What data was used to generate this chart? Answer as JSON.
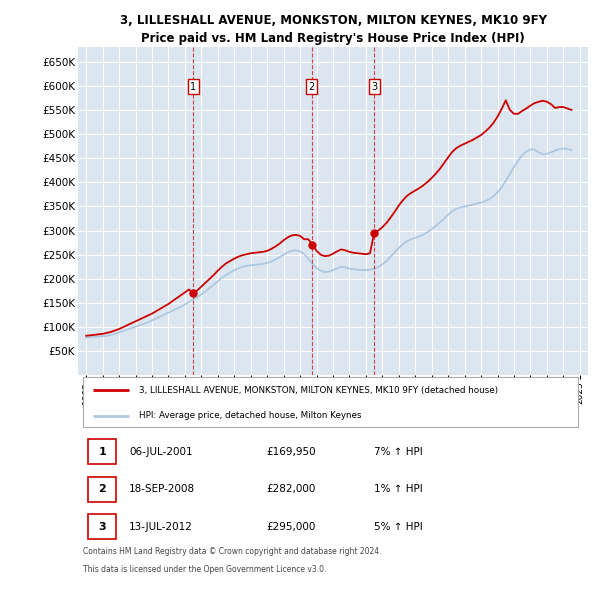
{
  "title": "3, LILLESHALL AVENUE, MONKSTON, MILTON KEYNES, MK10 9FY",
  "subtitle": "Price paid vs. HM Land Registry's House Price Index (HPI)",
  "legend_line1": "3, LILLESHALL AVENUE, MONKSTON, MILTON KEYNES, MK10 9FY (detached house)",
  "legend_line2": "HPI: Average price, detached house, Milton Keynes",
  "footer1": "Contains HM Land Registry data © Crown copyright and database right 2024.",
  "footer2": "This data is licensed under the Open Government Licence v3.0.",
  "transactions": [
    {
      "label": "1",
      "date": "06-JUL-2001",
      "price": 169950,
      "hpi_pct": "7%",
      "x": 2001.5
    },
    {
      "label": "2",
      "date": "18-SEP-2008",
      "price": 282000,
      "hpi_pct": "1%",
      "x": 2008.71
    },
    {
      "label": "3",
      "date": "13-JUL-2012",
      "price": 295000,
      "hpi_pct": "5%",
      "x": 2012.5
    }
  ],
  "ylim": [
    0,
    680000
  ],
  "yticks": [
    50000,
    100000,
    150000,
    200000,
    250000,
    300000,
    350000,
    400000,
    450000,
    500000,
    550000,
    600000,
    650000
  ],
  "xlim": [
    1994.5,
    2025.5
  ],
  "bg_color": "#dce6f1",
  "grid_color": "#ffffff",
  "hpi_color": "#aec8e0",
  "price_color": "#cc0000",
  "hpi_data_x": [
    1995.0,
    1995.25,
    1995.5,
    1995.75,
    1996.0,
    1996.25,
    1996.5,
    1996.75,
    1997.0,
    1997.25,
    1997.5,
    1997.75,
    1998.0,
    1998.25,
    1998.5,
    1998.75,
    1999.0,
    1999.25,
    1999.5,
    1999.75,
    2000.0,
    2000.25,
    2000.5,
    2000.75,
    2001.0,
    2001.25,
    2001.5,
    2001.75,
    2002.0,
    2002.25,
    2002.5,
    2002.75,
    2003.0,
    2003.25,
    2003.5,
    2003.75,
    2004.0,
    2004.25,
    2004.5,
    2004.75,
    2005.0,
    2005.25,
    2005.5,
    2005.75,
    2006.0,
    2006.25,
    2006.5,
    2006.75,
    2007.0,
    2007.25,
    2007.5,
    2007.75,
    2008.0,
    2008.25,
    2008.5,
    2008.75,
    2009.0,
    2009.25,
    2009.5,
    2009.75,
    2010.0,
    2010.25,
    2010.5,
    2010.75,
    2011.0,
    2011.25,
    2011.5,
    2011.75,
    2012.0,
    2012.25,
    2012.5,
    2012.75,
    2013.0,
    2013.25,
    2013.5,
    2013.75,
    2014.0,
    2014.25,
    2014.5,
    2014.75,
    2015.0,
    2015.25,
    2015.5,
    2015.75,
    2016.0,
    2016.25,
    2016.5,
    2016.75,
    2017.0,
    2017.25,
    2017.5,
    2017.75,
    2018.0,
    2018.25,
    2018.5,
    2018.75,
    2019.0,
    2019.25,
    2019.5,
    2019.75,
    2020.0,
    2020.25,
    2020.5,
    2020.75,
    2021.0,
    2021.25,
    2021.5,
    2021.75,
    2022.0,
    2022.25,
    2022.5,
    2022.75,
    2023.0,
    2023.25,
    2023.5,
    2023.75,
    2024.0,
    2024.25,
    2024.5
  ],
  "hpi_data_y": [
    78000,
    79000,
    80000,
    80500,
    81000,
    82000,
    84000,
    86000,
    89000,
    92000,
    95000,
    98000,
    101000,
    104000,
    107000,
    110000,
    114000,
    118000,
    122000,
    126000,
    130000,
    134000,
    138000,
    142000,
    147000,
    152000,
    157000,
    162000,
    168000,
    174000,
    181000,
    188000,
    195000,
    202000,
    208000,
    213000,
    218000,
    222000,
    225000,
    227000,
    228000,
    229000,
    230000,
    231000,
    233000,
    236000,
    240000,
    245000,
    250000,
    255000,
    258000,
    259000,
    257000,
    251000,
    242000,
    231000,
    222000,
    217000,
    214000,
    215000,
    218000,
    222000,
    225000,
    224000,
    221000,
    220000,
    219000,
    218000,
    218000,
    219000,
    221000,
    225000,
    230000,
    237000,
    246000,
    255000,
    264000,
    272000,
    278000,
    282000,
    285000,
    288000,
    292000,
    297000,
    303000,
    310000,
    317000,
    325000,
    333000,
    340000,
    345000,
    348000,
    350000,
    352000,
    354000,
    356000,
    358000,
    361000,
    365000,
    371000,
    379000,
    390000,
    403000,
    417000,
    432000,
    445000,
    456000,
    464000,
    468000,
    468000,
    462000,
    458000,
    459000,
    462000,
    466000,
    469000,
    470000,
    469000,
    467000
  ],
  "price_data_x": [
    1995.0,
    1995.25,
    1995.5,
    1995.75,
    1996.0,
    1996.25,
    1996.5,
    1996.75,
    1997.0,
    1997.25,
    1997.5,
    1997.75,
    1998.0,
    1998.25,
    1998.5,
    1998.75,
    1999.0,
    1999.25,
    1999.5,
    1999.75,
    2000.0,
    2000.25,
    2000.5,
    2000.75,
    2001.0,
    2001.25,
    2001.5,
    2001.75,
    2002.0,
    2002.25,
    2002.5,
    2002.75,
    2003.0,
    2003.25,
    2003.5,
    2003.75,
    2004.0,
    2004.25,
    2004.5,
    2004.75,
    2005.0,
    2005.25,
    2005.5,
    2005.75,
    2006.0,
    2006.25,
    2006.5,
    2006.75,
    2007.0,
    2007.25,
    2007.5,
    2007.75,
    2008.0,
    2008.25,
    2008.5,
    2008.75,
    2009.0,
    2009.25,
    2009.5,
    2009.75,
    2010.0,
    2010.25,
    2010.5,
    2010.75,
    2011.0,
    2011.25,
    2011.5,
    2011.75,
    2012.0,
    2012.25,
    2012.5,
    2012.75,
    2013.0,
    2013.25,
    2013.5,
    2013.75,
    2014.0,
    2014.25,
    2014.5,
    2014.75,
    2015.0,
    2015.25,
    2015.5,
    2015.75,
    2016.0,
    2016.25,
    2016.5,
    2016.75,
    2017.0,
    2017.25,
    2017.5,
    2017.75,
    2018.0,
    2018.25,
    2018.5,
    2018.75,
    2019.0,
    2019.25,
    2019.5,
    2019.75,
    2020.0,
    2020.25,
    2020.5,
    2020.75,
    2021.0,
    2021.25,
    2021.5,
    2021.75,
    2022.0,
    2022.25,
    2022.5,
    2022.75,
    2023.0,
    2023.25,
    2023.5,
    2023.75,
    2024.0,
    2024.25,
    2024.5
  ],
  "price_data_y": [
    82000,
    83000,
    84000,
    85000,
    86000,
    88000,
    90000,
    93000,
    96000,
    100000,
    104000,
    108000,
    112000,
    116000,
    120000,
    124000,
    128000,
    133000,
    138000,
    143000,
    148000,
    154000,
    160000,
    166000,
    172000,
    178000,
    169950,
    176000,
    184000,
    192000,
    200000,
    208000,
    217000,
    225000,
    232000,
    237000,
    242000,
    246000,
    249000,
    251000,
    253000,
    254000,
    255000,
    256000,
    258000,
    262000,
    267000,
    273000,
    280000,
    286000,
    290000,
    291000,
    289000,
    282000,
    282000,
    271000,
    258000,
    250000,
    247000,
    248000,
    252000,
    257000,
    261000,
    259000,
    256000,
    254000,
    253000,
    252000,
    251000,
    253000,
    295000,
    300000,
    307000,
    316000,
    327000,
    339000,
    352000,
    363000,
    372000,
    378000,
    383000,
    388000,
    394000,
    401000,
    409000,
    418000,
    428000,
    440000,
    452000,
    463000,
    471000,
    476000,
    480000,
    484000,
    488000,
    493000,
    498000,
    505000,
    513000,
    523000,
    536000,
    552000,
    570000,
    550000,
    542000,
    542000,
    548000,
    553000,
    559000,
    564000,
    567000,
    569000,
    567000,
    562000,
    554000,
    556000,
    556000,
    553000,
    550000
  ]
}
